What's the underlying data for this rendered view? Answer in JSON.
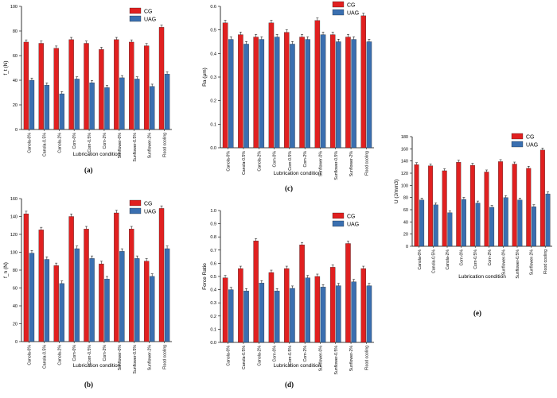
{
  "colors": {
    "CG": "#e02020",
    "UAG": "#3a6fb0",
    "axis": "#000000"
  },
  "chart_data": [
    {
      "id": "a",
      "panel_label": "(a)",
      "type": "bar",
      "ylabel": "f_t (N)",
      "xlabel": "Lubrication condition",
      "ylim": [
        0,
        100
      ],
      "yticks": [
        0,
        20,
        40,
        60,
        80,
        100
      ],
      "legend_position": "top-right",
      "categories": [
        "Canola-0%",
        "Canola-0.5%",
        "Canola-2%",
        "Corn-0%",
        "Corn-0.5%",
        "Corn-2%",
        "Sunflower-0%",
        "Sunflower-0.5%",
        "Sunflower-2%",
        "Flood cooling"
      ],
      "series": [
        {
          "name": "CG",
          "values": [
            71,
            70,
            66,
            73,
            70,
            65,
            73,
            71,
            68,
            83
          ]
        },
        {
          "name": "UAG",
          "values": [
            40,
            36,
            29,
            41,
            38,
            34,
            42,
            41,
            35,
            45
          ]
        }
      ]
    },
    {
      "id": "c",
      "panel_label": "(c)",
      "type": "bar",
      "ylabel": "Ra (μm)",
      "xlabel": "Lubrication condition",
      "ylim": [
        0,
        0.6
      ],
      "yticks": [
        0.0,
        0.1,
        0.2,
        0.3,
        0.4,
        0.5,
        0.6
      ],
      "legend_position": "top-right",
      "categories": [
        "Canola-0%",
        "Canola-0.5%",
        "Canola-2%",
        "Corn-0%",
        "Corn-0.5%",
        "Corn-2%",
        "Sunflower-0%",
        "Sunflower-0.5%",
        "Sunflower-2%",
        "Flood cooling"
      ],
      "series": [
        {
          "name": "CG",
          "values": [
            0.53,
            0.48,
            0.47,
            0.53,
            0.49,
            0.47,
            0.54,
            0.48,
            0.47,
            0.56
          ]
        },
        {
          "name": "UAG",
          "values": [
            0.46,
            0.44,
            0.46,
            0.47,
            0.44,
            0.46,
            0.48,
            0.45,
            0.46,
            0.45
          ]
        }
      ]
    },
    {
      "id": "e",
      "panel_label": "(e)",
      "type": "bar",
      "ylabel": "U (J/mm3)",
      "xlabel": "Lubrication condition",
      "ylim": [
        0,
        180
      ],
      "yticks": [
        0,
        20,
        40,
        60,
        80,
        100,
        120,
        140,
        160,
        180
      ],
      "legend_position": "top-right",
      "categories": [
        "Canola-0%",
        "Canola-0.5%",
        "Canola-2%",
        "Corn-0%",
        "Corn-0.5%",
        "Corn-2%",
        "Sunflower-0%",
        "Sunflower-0.5%",
        "Sunflower-2%",
        "Flood cooling"
      ],
      "series": [
        {
          "name": "CG",
          "values": [
            134,
            132,
            124,
            138,
            133,
            122,
            139,
            135,
            128,
            158
          ]
        },
        {
          "name": "UAG",
          "values": [
            76,
            68,
            55,
            77,
            71,
            64,
            80,
            76,
            65,
            86
          ]
        }
      ]
    },
    {
      "id": "b",
      "panel_label": "(b)",
      "type": "bar",
      "ylabel": "f_n (N)",
      "xlabel": "Lubrication condition",
      "ylim": [
        0,
        160
      ],
      "yticks": [
        0,
        20,
        40,
        60,
        80,
        100,
        120,
        140,
        160
      ],
      "legend_position": "top-right",
      "categories": [
        "Canola-0%",
        "Canola-0.5%",
        "Canola-2%",
        "Corn-0%",
        "Corn-0.5%",
        "Corn-2%",
        "Sunflower-0%",
        "Sunflower-0.5%",
        "Sunflower-2%",
        "Flood cooling"
      ],
      "series": [
        {
          "name": "CG",
          "values": [
            143,
            125,
            85,
            140,
            126,
            87,
            144,
            126,
            90,
            149
          ]
        },
        {
          "name": "UAG",
          "values": [
            99,
            92,
            65,
            104,
            93,
            70,
            101,
            93,
            73,
            104
          ]
        }
      ]
    },
    {
      "id": "d",
      "panel_label": "(d)",
      "type": "bar",
      "ylabel": "Force Ratio",
      "xlabel": "Lubrication condition",
      "ylim": [
        0,
        1.0
      ],
      "yticks": [
        0.0,
        0.1,
        0.2,
        0.3,
        0.4,
        0.5,
        0.6,
        0.7,
        0.8,
        0.9,
        1.0
      ],
      "legend_position": "top-right",
      "categories": [
        "Canola-0%",
        "Canola-0.5%",
        "Canola-2%",
        "Corn-0%",
        "Corn-0.5%",
        "Corn-2%",
        "Sunflower-0%",
        "Sunflower-0.5%",
        "Sunflower-2%",
        "Flood cooling"
      ],
      "series": [
        {
          "name": "CG",
          "values": [
            0.49,
            0.56,
            0.77,
            0.53,
            0.56,
            0.74,
            0.5,
            0.57,
            0.75,
            0.56
          ]
        },
        {
          "name": "UAG",
          "values": [
            0.4,
            0.39,
            0.45,
            0.39,
            0.41,
            0.49,
            0.42,
            0.43,
            0.46,
            0.43
          ]
        }
      ]
    }
  ]
}
